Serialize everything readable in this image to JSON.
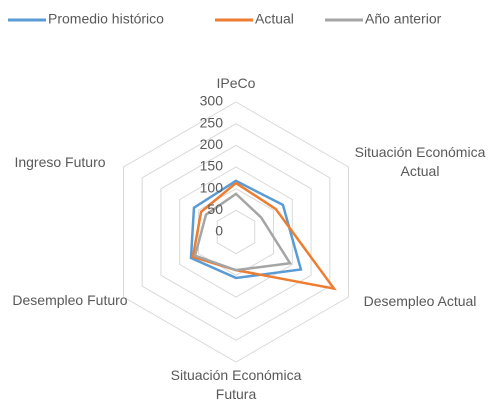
{
  "chart_data": {
    "type": "radar",
    "categories": [
      "IPeCo",
      "Situación Económica Actual",
      "Desempleo Actual",
      "Situación Económica Futura",
      "Desempleo Futuro",
      "Ingreso Futuro"
    ],
    "series": [
      {
        "name": "Promedio histórico",
        "color": "#5b9bd5",
        "values": [
          118,
          125,
          173,
          106,
          120,
          112
        ]
      },
      {
        "name": "Actual",
        "color": "#ed7d31",
        "values": [
          113,
          106,
          261,
          88,
          115,
          93
        ]
      },
      {
        "name": "Año anterior",
        "color": "#a5a5a5",
        "values": [
          88,
          67,
          144,
          88,
          109,
          80
        ]
      }
    ],
    "rlim": [
      0,
      300
    ],
    "rticks": [
      0,
      50,
      100,
      150,
      200,
      250,
      300
    ],
    "grid": true,
    "legend": "top"
  }
}
